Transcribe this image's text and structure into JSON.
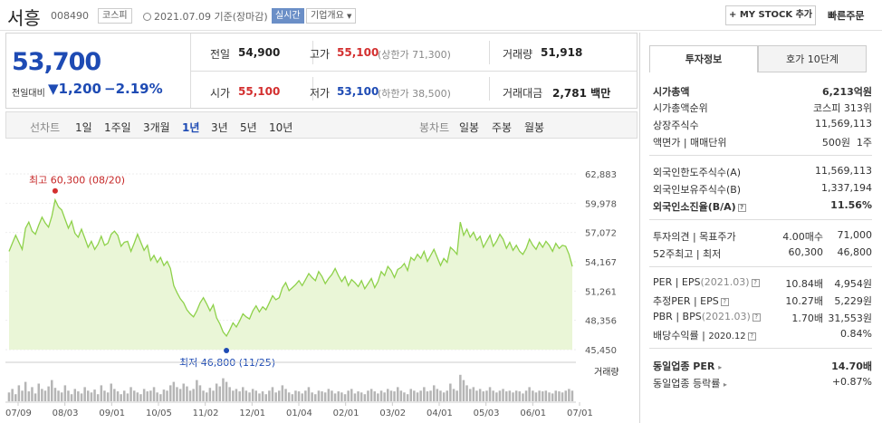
{
  "header": {
    "name": "서흥",
    "code": "008490",
    "market": "코스피",
    "datetime": "2021.07.09  기준(장마감)",
    "live": "실시간",
    "company_overview": "기업개요",
    "my_stock": "+ MY STOCK 추가",
    "quick_order": "빠른주문"
  },
  "price": {
    "current": "53,700",
    "change_label": "전일대비",
    "change": "▼1,200",
    "change_pct": "−2.19%"
  },
  "quote": {
    "prev_label": "전일",
    "prev": "54,900",
    "high_label": "고가",
    "high": "55,100",
    "upper_limit": "(상한가 71,300)",
    "volume_label": "거래량",
    "volume": "51,918",
    "open_label": "시가",
    "open": "55,100",
    "low_label": "저가",
    "low": "53,100",
    "lower_limit": "(하한가 38,500)",
    "amount_label": "거래대금",
    "amount": "2,781",
    "amount_unit": "백만"
  },
  "period": {
    "line_label": "선차트",
    "items": [
      "1일",
      "1주일",
      "3개월",
      "1년",
      "3년",
      "5년",
      "10년"
    ],
    "active": "1년",
    "candle_label": "봉차트",
    "candle_items": [
      "일봉",
      "주봉",
      "월봉"
    ]
  },
  "chart_data": {
    "type": "area",
    "y_ticks": [
      "62,883",
      "59,978",
      "57,072",
      "54,167",
      "51,261",
      "48,356",
      "45,450"
    ],
    "ylim": [
      45450,
      62883
    ],
    "x_ticks": [
      "07/09",
      "08/03",
      "09/01",
      "10/05",
      "11/02",
      "12/01",
      "01/04",
      "02/01",
      "03/02",
      "04/01",
      "05/03",
      "06/01",
      "07/01"
    ],
    "high_label": "최고 60,300 (08/20)",
    "low_label": "최저 46,800 (11/25)",
    "high": 60300,
    "low": 46800,
    "volume_label": "거래량",
    "values": [
      55200,
      56000,
      56800,
      56100,
      55400,
      57500,
      58100,
      57200,
      56900,
      57800,
      58600,
      58000,
      57600,
      58700,
      60300,
      59600,
      59300,
      58400,
      57500,
      58200,
      57000,
      56600,
      57400,
      56500,
      55600,
      56200,
      55400,
      55900,
      56700,
      55800,
      56000,
      56900,
      57200,
      56800,
      55700,
      56100,
      56200,
      55200,
      56000,
      56900,
      56100,
      55300,
      55800,
      54300,
      54800,
      54100,
      54600,
      53800,
      54200,
      53500,
      51800,
      51100,
      50500,
      50100,
      49400,
      49000,
      48700,
      49300,
      50100,
      50600,
      50000,
      49300,
      49900,
      48600,
      48000,
      47200,
      46800,
      47400,
      48100,
      47700,
      48300,
      49000,
      48700,
      48500,
      49300,
      49800,
      49200,
      49700,
      49400,
      50100,
      50800,
      50400,
      50600,
      51600,
      52100,
      51300,
      51600,
      51900,
      52300,
      51800,
      52400,
      53000,
      52600,
      52300,
      53200,
      52700,
      52000,
      52500,
      52900,
      53500,
      52800,
      52200,
      52700,
      51800,
      52400,
      52100,
      51700,
      52300,
      51500,
      52000,
      52500,
      51600,
      52200,
      53200,
      52800,
      53700,
      53300,
      52600,
      53400,
      53600,
      54000,
      53300,
      54600,
      54300,
      54900,
      54500,
      55200,
      54200,
      54800,
      55400,
      54600,
      53800,
      54500,
      54100,
      55600,
      55300,
      54900,
      58100,
      56800,
      57400,
      56600,
      57100,
      56300,
      56700,
      55600,
      56200,
      56800,
      55700,
      56200,
      56900,
      56400,
      55500,
      56100,
      55300,
      55800,
      55200,
      54900,
      55500,
      56400,
      55800,
      55400,
      56100,
      55600,
      56200,
      55800,
      55200,
      56000,
      55500,
      55800,
      55700,
      54900,
      53700
    ],
    "volumes": [
      0.25,
      0.35,
      0.2,
      0.45,
      0.3,
      0.55,
      0.28,
      0.4,
      0.22,
      0.5,
      0.35,
      0.3,
      0.42,
      0.6,
      0.38,
      0.3,
      0.25,
      0.45,
      0.3,
      0.2,
      0.35,
      0.28,
      0.22,
      0.4,
      0.3,
      0.25,
      0.33,
      0.2,
      0.45,
      0.3,
      0.25,
      0.5,
      0.35,
      0.28,
      0.2,
      0.3,
      0.22,
      0.4,
      0.3,
      0.25,
      0.2,
      0.35,
      0.28,
      0.3,
      0.4,
      0.25,
      0.2,
      0.33,
      0.3,
      0.45,
      0.55,
      0.4,
      0.35,
      0.5,
      0.42,
      0.3,
      0.35,
      0.6,
      0.45,
      0.3,
      0.25,
      0.38,
      0.3,
      0.5,
      0.42,
      0.65,
      0.55,
      0.4,
      0.3,
      0.35,
      0.28,
      0.4,
      0.3,
      0.25,
      0.35,
      0.3,
      0.22,
      0.28,
      0.2,
      0.3,
      0.4,
      0.25,
      0.3,
      0.45,
      0.35,
      0.25,
      0.2,
      0.3,
      0.28,
      0.22,
      0.3,
      0.4,
      0.25,
      0.2,
      0.3,
      0.28,
      0.25,
      0.35,
      0.3,
      0.22,
      0.28,
      0.25,
      0.2,
      0.3,
      0.35,
      0.22,
      0.28,
      0.25,
      0.2,
      0.3,
      0.35,
      0.28,
      0.22,
      0.3,
      0.25,
      0.35,
      0.3,
      0.28,
      0.4,
      0.3,
      0.25,
      0.2,
      0.35,
      0.3,
      0.25,
      0.3,
      0.4,
      0.28,
      0.3,
      0.45,
      0.35,
      0.3,
      0.25,
      0.3,
      0.5,
      0.35,
      0.3,
      0.75,
      0.6,
      0.45,
      0.35,
      0.4,
      0.3,
      0.35,
      0.28,
      0.3,
      0.4,
      0.3,
      0.25,
      0.3,
      0.35,
      0.28,
      0.3,
      0.25,
      0.3,
      0.28,
      0.22,
      0.3,
      0.4,
      0.3,
      0.25,
      0.3,
      0.28,
      0.3,
      0.25,
      0.22,
      0.3,
      0.28,
      0.25,
      0.3,
      0.35,
      0.3
    ]
  },
  "panel": {
    "tab_info": "투자정보",
    "tab_order": "호가 10단계",
    "market_cap_label": "시가총액",
    "market_cap": "6,213억원",
    "market_cap_rank_label": "시가총액순위",
    "market_cap_rank": "코스피 313위",
    "shares_label": "상장주식수",
    "shares": "11,569,113",
    "par_label": "액면가 | 매매단위",
    "par": "500원",
    "unit": "1주",
    "foreign_limit_label": "외국인한도주식수(A)",
    "foreign_limit": "11,569,113",
    "foreign_hold_label": "외국인보유주식수(B)",
    "foreign_hold": "1,337,194",
    "foreign_ratio_label": "외국인소진율(B/A)",
    "foreign_ratio": "11.56%",
    "opinion_label": "투자의견 | 목표주가",
    "opinion": "4.00매수",
    "target": "71,000",
    "w52_label": "52주최고 | 최저",
    "w52_high": "60,300",
    "w52_low": "46,800",
    "per_label": "PER | EPS",
    "per_period": "(2021.03)",
    "per": "10.84배",
    "eps": "4,954원",
    "est_per_label": "추정PER | EPS",
    "est_per": "10.27배",
    "est_eps": "5,229원",
    "pbr_label": "PBR | BPS",
    "pbr_period": "(2021.03)",
    "pbr": "1.70배",
    "bps": "31,553원",
    "div_label": "배당수익률",
    "div_period": "2020.12",
    "div": "0.84%",
    "ind_per_label": "동일업종 PER",
    "ind_per": "14.70배",
    "ind_rate_label": "동일업종 등락률",
    "ind_rate": "+0.87%"
  }
}
